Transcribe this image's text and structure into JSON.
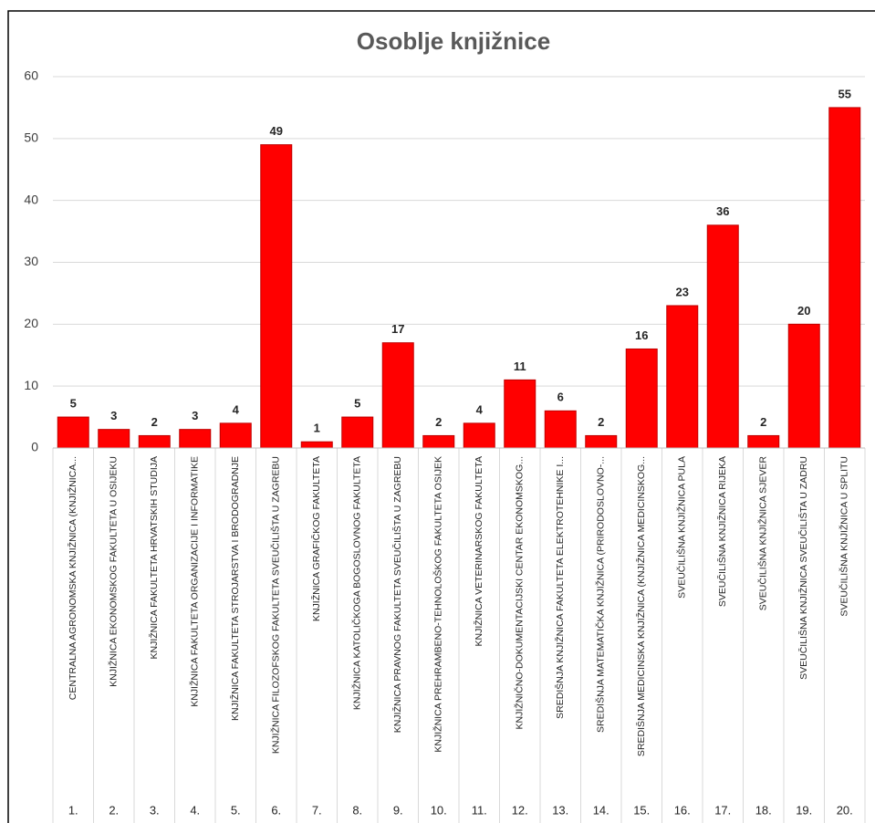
{
  "chart_data": {
    "type": "bar",
    "title": "Osoblje knjižnice",
    "categories": [
      "CENTRALNA AGRONOMSKA KNJIŽNICA (KNJIŽNICA...",
      "KNJIŽNICA EKONOMSKOG FAKULTETA U OSIJEKU",
      "KNJIŽNICA FAKULTETA HRVATSKIH STUDIJA",
      "KNJIŽNICA FAKULTETA ORGANIZACIJE I INFORMATIKE",
      "KNJIŽNICA FAKULTETA STROJARSTVA I BRODOGRADNJE",
      "KNJIŽNICA FILOZOFSKOG FAKULTETA SVEUČILIŠTA U ZAGREBU",
      "KNJIŽNICA GRAFIČKOG FAKULTETA",
      "KNJIŽNICA KATOLIČKOGA BOGOSLOVNOG FAKULTETA",
      "KNJIŽNICA PRAVNOG FAKULTETA SVEUČILIŠTA U ZAGREBU",
      "KNJIŽNICA PREHRAMBENO-TEHNOLOŠKOG FAKULTETA OSIJEK",
      "KNJIŽNICA VETERINARSKOG FAKULTETA",
      "KNJIŽNIČNO-DOKUMENTACIJSKI CENTAR EKONOMSKOG...",
      "SREDIŠNJA KNJIŽNICA FAKULTETA ELEKTROTEHNIKE I...",
      "SREDIŠNJA MATEMATIČKA KNJIŽNICA (PRIRODOSLOVNO-...",
      "SREDIŠNJA MEDICINSKA KNJIŽNICA (KNJIŽNICA MEDICINSKOG...",
      "SVEUČILIŠNA KNJIŽNICA PULA",
      "SVEUČILIŠNA KNJIŽNICA RIJEKA",
      "SVEUČILIŠNA KNJIŽNICA SJEVER",
      "SVEUČILIŠNA KNJIŽNICA SVEUČILIŠTA U ZADRU",
      "SVEUČILIŠNA KNJIŽNICA U SPLITU"
    ],
    "category_numbers": [
      "1.",
      "2.",
      "3.",
      "4.",
      "5.",
      "6.",
      "7.",
      "8.",
      "9.",
      "10.",
      "11.",
      "12.",
      "13.",
      "14.",
      "15.",
      "16.",
      "17.",
      "18.",
      "19.",
      "20."
    ],
    "values": [
      5,
      3,
      2,
      3,
      4,
      49,
      1,
      5,
      17,
      2,
      4,
      11,
      6,
      2,
      16,
      23,
      36,
      2,
      20,
      55
    ],
    "color": "#ff0000",
    "ylim": [
      0,
      60
    ],
    "yticks": [
      0,
      10,
      20,
      30,
      40,
      50,
      60
    ],
    "grid": true
  }
}
